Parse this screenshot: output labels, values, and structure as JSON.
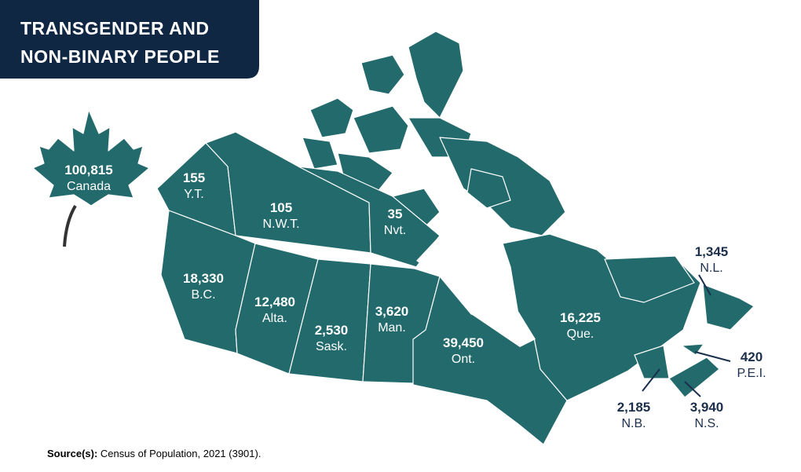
{
  "title": [
    "TRANSGENDER AND",
    "NON-BINARY PEOPLE"
  ],
  "regions": [
    {
      "value": "100,815",
      "label": "Canada"
    },
    {
      "value": "155",
      "label": "Y.T."
    },
    {
      "value": "105",
      "label": "N.W.T."
    },
    {
      "value": "35",
      "label": "Nvt."
    },
    {
      "value": "18,330",
      "label": "B.C."
    },
    {
      "value": "12,480",
      "label": "Alta."
    },
    {
      "value": "2,530",
      "label": "Sask."
    },
    {
      "value": "3,620",
      "label": "Man."
    },
    {
      "value": "39,450",
      "label": "Ont."
    },
    {
      "value": "16,225",
      "label": "Que."
    },
    {
      "value": "1,345",
      "label": "N.L."
    },
    {
      "value": "420",
      "label": "P.E.I."
    },
    {
      "value": "2,185",
      "label": "N.B."
    },
    {
      "value": "3,940",
      "label": "N.S."
    }
  ],
  "source": {
    "label": "Source(s):",
    "text": "Census of Population, 2021 (3901)."
  }
}
